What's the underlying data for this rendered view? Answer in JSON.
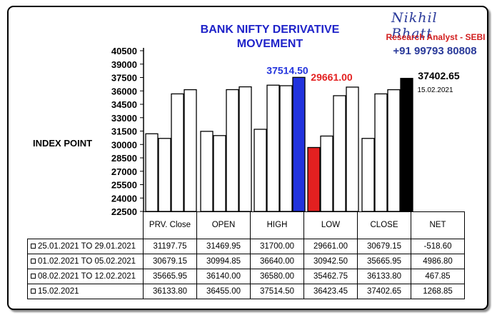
{
  "title": "BANK NIFTY DERIVATIVE MOVEMENT",
  "brand": {
    "name": "Nikhil Bhatt",
    "role": "Research Analyst - SEBI",
    "phone": "+91 99793 80808"
  },
  "colors": {
    "title": "#1f23c9",
    "high_bar": "#2233dd",
    "low_bar": "#e32020",
    "close_bar": "#000000",
    "brand": "#2a3a9a",
    "brand_role": "#d21f1f"
  },
  "chart_data": {
    "type": "bar",
    "ylabel": "INDEX POINT",
    "ylim": [
      22500,
      40500
    ],
    "yticks": [
      22500,
      24000,
      25500,
      27000,
      28500,
      30000,
      31500,
      33000,
      34500,
      36000,
      37500,
      39000,
      40500
    ],
    "categories": [
      "PRV. Close",
      "OPEN",
      "HIGH",
      "LOW",
      "CLOSE"
    ],
    "series": [
      {
        "name": "25.01.2021 TO 29.01.2021",
        "values": [
          31197.75,
          31469.95,
          31700.0,
          29661.0,
          30679.15
        ]
      },
      {
        "name": "01.02.2021 TO 05.02.2021",
        "values": [
          30679.15,
          30994.85,
          36640.0,
          30942.5,
          35665.95
        ]
      },
      {
        "name": "08.02.2021 TO 12.02.2021",
        "values": [
          35665.95,
          36140.0,
          36580.0,
          35462.75,
          36133.8
        ]
      },
      {
        "name": "15.02.2021",
        "values": [
          36133.8,
          36455.0,
          37514.5,
          36423.45,
          37402.65
        ]
      }
    ],
    "annotations": [
      {
        "text": "37514.50",
        "category": "HIGH",
        "series": 3,
        "color": "#2233dd"
      },
      {
        "text": "29661.00",
        "category": "LOW",
        "series": 0,
        "color": "#e32020"
      },
      {
        "text": "37402.65",
        "category": "CLOSE",
        "series": 3,
        "color": "#000000"
      },
      {
        "text": "15.02.2021",
        "category": "CLOSE",
        "series": 3,
        "color": "#000000"
      }
    ]
  },
  "table": {
    "headers": [
      "PRV. Close",
      "OPEN",
      "HIGH",
      "LOW",
      "CLOSE",
      "NET"
    ],
    "rows": [
      {
        "label": "25.01.2021 TO 29.01.2021",
        "cells": [
          "31197.75",
          "31469.95",
          "31700.00",
          "29661.00",
          "30679.15",
          "-518.60"
        ]
      },
      {
        "label": "01.02.2021 TO 05.02.2021",
        "cells": [
          "30679.15",
          "30994.85",
          "36640.00",
          "30942.50",
          "35665.95",
          "4986.80"
        ]
      },
      {
        "label": "08.02.2021 TO 12.02.2021",
        "cells": [
          "35665.95",
          "36140.00",
          "36580.00",
          "35462.75",
          "36133.80",
          "467.85"
        ]
      },
      {
        "label": "15.02.2021",
        "cells": [
          "36133.80",
          "36455.00",
          "37514.50",
          "36423.45",
          "37402.65",
          "1268.85"
        ]
      }
    ]
  }
}
